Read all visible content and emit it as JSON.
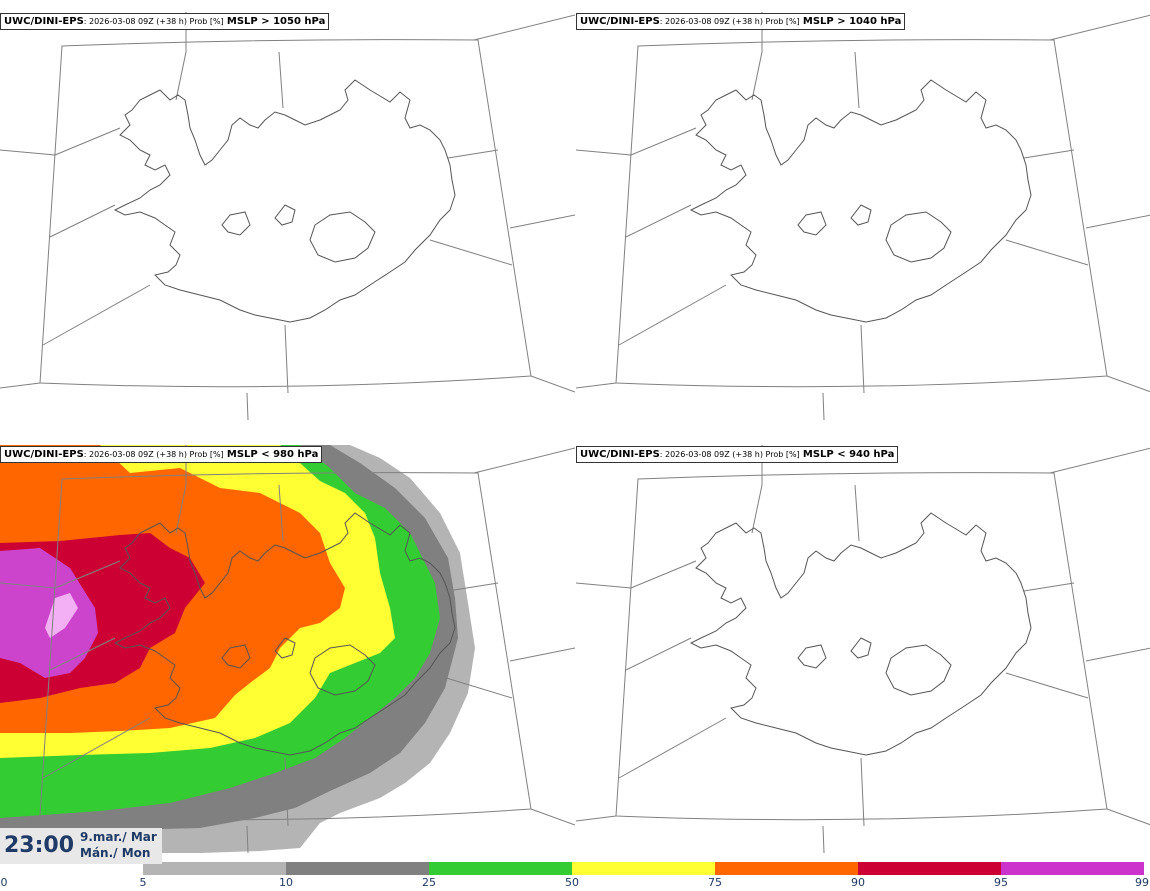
{
  "panels": [
    {
      "model": "UWC/DINI-EPS",
      "meta": ": 2026-03-08 09Z (+38 h) Prob [%]",
      "quantity": "MSLP > 1050 hPa"
    },
    {
      "model": "UWC/DINI-EPS",
      "meta": ": 2026-03-08 09Z (+38 h) Prob [%]",
      "quantity": "MSLP > 1040 hPa"
    },
    {
      "model": "UWC/DINI-EPS",
      "meta": ": 2026-03-08 09Z (+38 h) Prob [%]",
      "quantity": "MSLP < 980 hPa"
    },
    {
      "model": "UWC/DINI-EPS",
      "meta": ": 2026-03-08 09Z (+38 h) Prob [%]",
      "quantity": "MSLP < 940 hPa"
    }
  ],
  "valid_time": {
    "time": "23:00",
    "date_line1": "9.mar./ Mar",
    "date_line2": "Mán./ Mon"
  },
  "legend": {
    "ticks": [
      "0",
      "5",
      "10",
      "25",
      "50",
      "75",
      "90",
      "95",
      "99"
    ],
    "colors": [
      "#ffffff",
      "#b4b4b4",
      "#808080",
      "#33cc33",
      "#ffff33",
      "#ff6600",
      "#cc0033",
      "#cc33cc",
      "#f2aaf2"
    ]
  },
  "field_colors": {
    "p5": "#b4b4b4",
    "p10": "#808080",
    "p25": "#33cc33",
    "p50": "#ffff33",
    "p75": "#ff6600",
    "p90": "#cc0033",
    "p95": "#cc44cc",
    "p99": "#f4b0f4"
  }
}
